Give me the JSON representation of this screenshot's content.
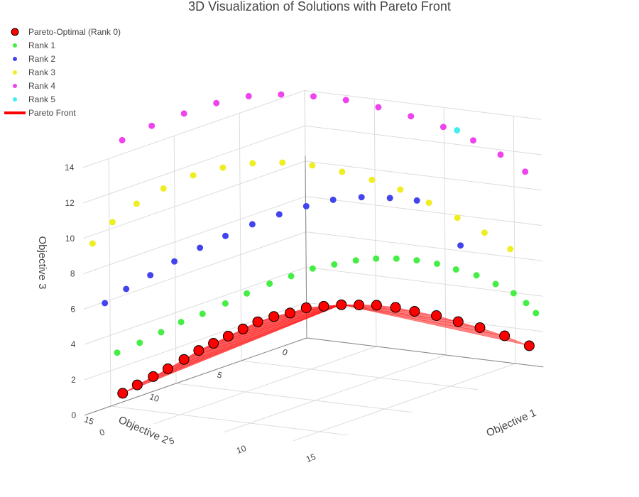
{
  "chart_data": {
    "type": "scatter3d",
    "title": "3D Visualization of Solutions with Pareto Front",
    "axes": {
      "x": {
        "label": "Objective 1",
        "ticks": [
          "0",
          "5",
          "10",
          "15"
        ],
        "range": [
          0,
          17
        ]
      },
      "y": {
        "label": "Objective 2",
        "ticks": [
          "0",
          "5",
          "10",
          "15"
        ],
        "range": [
          0,
          17
        ]
      },
      "z": {
        "label": "Objective 3",
        "ticks": [
          "0",
          "2",
          "4",
          "6",
          "8",
          "10",
          "12",
          "14"
        ],
        "range": [
          0,
          14
        ]
      }
    },
    "legend_position": "top-left",
    "grid": true,
    "series": [
      {
        "name": "Pareto-Optimal (Rank 0)",
        "color": "#ff0000",
        "marker": "large-outlined",
        "points": [
          [
            16,
            0,
            1.1
          ],
          [
            14.8,
            0.6,
            1.7
          ],
          [
            13.6,
            1.2,
            2.2
          ],
          [
            12.6,
            1.8,
            2.6
          ],
          [
            11.6,
            2.4,
            3.0
          ],
          [
            10.6,
            3.0,
            3.3
          ],
          [
            9.8,
            3.6,
            3.6
          ],
          [
            9.0,
            4.2,
            3.8
          ],
          [
            8.3,
            4.8,
            3.9
          ],
          [
            7.6,
            5.4,
            4.0
          ],
          [
            6.9,
            6.0,
            4.0
          ],
          [
            6.2,
            6.6,
            4.0
          ],
          [
            5.6,
            7.2,
            3.8
          ],
          [
            5.0,
            7.8,
            3.7
          ],
          [
            4.4,
            8.4,
            3.5
          ],
          [
            3.9,
            9.0,
            3.2
          ],
          [
            3.4,
            9.6,
            2.9
          ],
          [
            2.9,
            10.2,
            2.6
          ],
          [
            2.4,
            10.8,
            2.3
          ],
          [
            1.9,
            11.4,
            1.9
          ],
          [
            1.4,
            12.1,
            1.5
          ],
          [
            1.0,
            12.8,
            1.2
          ],
          [
            0.6,
            13.6,
            0.9
          ],
          [
            0.3,
            14.4,
            0.6
          ]
        ]
      },
      {
        "name": "Rank 1",
        "color": "#44ee44",
        "marker": "dot",
        "points": [
          [
            0.3,
            14.8,
            3.0
          ],
          [
            0.8,
            13.6,
            3.3
          ],
          [
            1.4,
            12.6,
            3.7
          ],
          [
            2.0,
            11.7,
            4.1
          ],
          [
            2.7,
            10.8,
            4.4
          ],
          [
            3.4,
            9.8,
            4.8
          ],
          [
            4.1,
            8.9,
            5.2
          ],
          [
            4.9,
            8.0,
            5.6
          ],
          [
            5.7,
            7.2,
            5.9
          ],
          [
            6.5,
            6.4,
            6.2
          ],
          [
            7.3,
            5.6,
            6.3
          ],
          [
            8.1,
            4.8,
            6.4
          ],
          [
            8.9,
            4.1,
            6.4
          ],
          [
            9.7,
            3.4,
            6.3
          ],
          [
            10.5,
            2.7,
            6.1
          ],
          [
            11.3,
            2.0,
            5.8
          ],
          [
            12.1,
            1.4,
            5.4
          ],
          [
            13.0,
            0.8,
            5.0
          ],
          [
            14.0,
            0.4,
            4.5
          ],
          [
            15.0,
            0.1,
            4.0
          ],
          [
            15.8,
            0.0,
            3.5
          ],
          [
            16.5,
            0.0,
            3.0
          ]
        ]
      },
      {
        "name": "Rank 2",
        "color": "#4444ee",
        "marker": "dot",
        "points": [
          [
            0.2,
            15.6,
            6.0
          ],
          [
            0.8,
            14.6,
            6.6
          ],
          [
            1.6,
            13.6,
            7.2
          ],
          [
            2.4,
            12.6,
            7.8
          ],
          [
            3.3,
            11.6,
            8.4
          ],
          [
            4.2,
            10.6,
            8.9
          ],
          [
            5.2,
            9.6,
            9.4
          ],
          [
            6.2,
            8.6,
            9.8
          ],
          [
            7.2,
            7.6,
            10.1
          ],
          [
            8.2,
            6.6,
            10.3
          ],
          [
            9.3,
            5.6,
            10.3
          ],
          [
            10.4,
            4.6,
            10.1
          ],
          [
            11.4,
            3.6,
            9.8
          ],
          [
            13.0,
            2.0,
            7.0
          ]
        ]
      },
      {
        "name": "Rank 3",
        "color": "#eeee22",
        "marker": "dot",
        "points": [
          [
            0.2,
            16.5,
            9.6
          ],
          [
            0.7,
            15.5,
            10.6
          ],
          [
            1.6,
            14.6,
            11.5
          ],
          [
            2.6,
            13.6,
            12.2
          ],
          [
            3.8,
            12.6,
            12.8
          ],
          [
            5.0,
            11.6,
            13.1
          ],
          [
            6.2,
            10.6,
            13.2
          ],
          [
            7.4,
            9.6,
            13.1
          ],
          [
            8.6,
            8.6,
            12.8
          ],
          [
            9.8,
            7.6,
            12.3
          ],
          [
            11.0,
            6.6,
            11.7
          ],
          [
            12.1,
            5.6,
            11.0
          ],
          [
            13.2,
            4.6,
            10.1
          ],
          [
            14.3,
            3.6,
            9.1
          ],
          [
            15.3,
            2.6,
            8.1
          ],
          [
            16.2,
            1.6,
            7.0
          ]
        ]
      },
      {
        "name": "Rank 4",
        "color": "#ee44ee",
        "marker": "dot",
        "points": [
          [
            0.6,
            14.6,
            15.0
          ],
          [
            1.6,
            13.4,
            15.6
          ],
          [
            2.8,
            12.2,
            16.1
          ],
          [
            4.0,
            11.0,
            16.5
          ],
          [
            5.2,
            9.8,
            16.7
          ],
          [
            6.4,
            8.6,
            16.6
          ],
          [
            7.6,
            7.4,
            16.3
          ],
          [
            8.8,
            6.2,
            15.9
          ],
          [
            10.0,
            5.0,
            15.3
          ],
          [
            11.2,
            3.8,
            14.6
          ],
          [
            12.4,
            2.6,
            13.8
          ],
          [
            13.6,
            1.6,
            12.9
          ],
          [
            14.8,
            0.8,
            12.0
          ],
          [
            16.0,
            0.2,
            11.0
          ]
        ]
      },
      {
        "name": "Rank 5",
        "color": "#44eeee",
        "marker": "dot",
        "points": [
          [
            13.1,
            2.3,
            13.6
          ]
        ]
      },
      {
        "name": "Pareto Front",
        "color": "#ff0000",
        "marker": "line"
      }
    ]
  }
}
